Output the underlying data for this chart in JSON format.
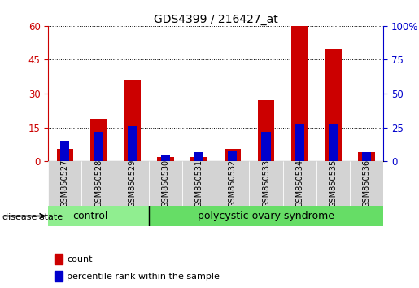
{
  "title": "GDS4399 / 216427_at",
  "samples": [
    "GSM850527",
    "GSM850528",
    "GSM850529",
    "GSM850530",
    "GSM850531",
    "GSM850532",
    "GSM850533",
    "GSM850534",
    "GSM850535",
    "GSM850536"
  ],
  "count_values": [
    5.5,
    19,
    36,
    2,
    2,
    5.5,
    27,
    60,
    50,
    4
  ],
  "percentile_values": [
    15,
    22,
    26,
    5,
    7,
    8,
    22,
    27,
    27,
    7
  ],
  "left_ylim": [
    0,
    60
  ],
  "right_ylim": [
    0,
    100
  ],
  "left_yticks": [
    0,
    15,
    30,
    45,
    60
  ],
  "right_yticks": [
    0,
    25,
    50,
    75,
    100
  ],
  "left_yticklabels": [
    "0",
    "15",
    "30",
    "45",
    "60"
  ],
  "right_yticklabels": [
    "0",
    "25",
    "50",
    "75",
    "100%"
  ],
  "left_tick_color": "#cc0000",
  "right_tick_color": "#0000cc",
  "count_color": "#cc0000",
  "percentile_color": "#0000cc",
  "group_labels": [
    "control",
    "polycystic ovary syndrome"
  ],
  "sample_bg_color": "#d3d3d3",
  "disease_state_label": "disease state",
  "legend_count_label": "count",
  "legend_percentile_label": "percentile rank within the sample",
  "ctrl_samples": 3,
  "total_samples": 10
}
